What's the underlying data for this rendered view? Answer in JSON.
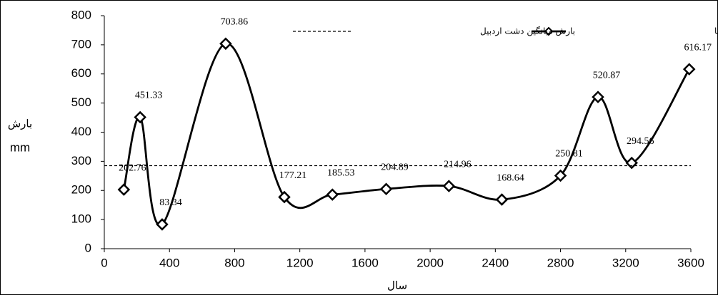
{
  "chart_data": {
    "type": "line",
    "x_label": "سال",
    "y_label": "بارش",
    "y_unit": "mm",
    "xlim": [
      0,
      3600
    ],
    "xticks": [
      0,
      400,
      800,
      1200,
      1600,
      2000,
      2400,
      2800,
      3200,
      3600
    ],
    "ylim": [
      0,
      800
    ],
    "yticks": [
      0,
      100,
      200,
      300,
      400,
      500,
      600,
      700,
      800
    ],
    "series": [
      {
        "name": "بارش مدل سازی دشت با ردیاب ها",
        "color": "#000000",
        "style": "solid-diamond",
        "x": [
          120,
          220,
          355,
          745,
          1105,
          1400,
          1730,
          2115,
          2440,
          2800,
          3030,
          3237,
          3590
        ],
        "values": [
          202.76,
          451.33,
          83.34,
          703.86,
          177.21,
          185.53,
          204.89,
          214.96,
          168.64,
          250.81,
          520.87,
          294.56,
          616.17
        ]
      },
      {
        "name": "بارش میانگین دشت اردبیل",
        "color": "#000000",
        "style": "dashed",
        "x": [
          0,
          3600
        ],
        "values": [
          285,
          285
        ]
      }
    ]
  }
}
